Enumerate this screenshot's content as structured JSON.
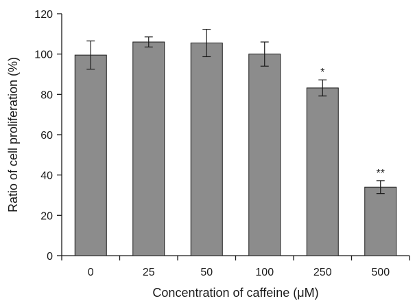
{
  "chart_data": {
    "type": "bar",
    "xlabel": "Concentration of caffeine (μM)",
    "ylabel": "Ratio of cell proliferation (%)",
    "ylim": [
      0,
      120
    ],
    "yticks": [
      0,
      20,
      40,
      60,
      80,
      100,
      120
    ],
    "categories": [
      "0",
      "25",
      "50",
      "100",
      "250",
      "500"
    ],
    "values": [
      99.5,
      106,
      105.5,
      100,
      83.2,
      34
    ],
    "errors": [
      7,
      2.5,
      6.8,
      6,
      4,
      3.2
    ],
    "significance": [
      "",
      "",
      "",
      "",
      "*",
      "**"
    ],
    "bar_color": "#8c8c8c",
    "grid": false,
    "legend": "none"
  }
}
